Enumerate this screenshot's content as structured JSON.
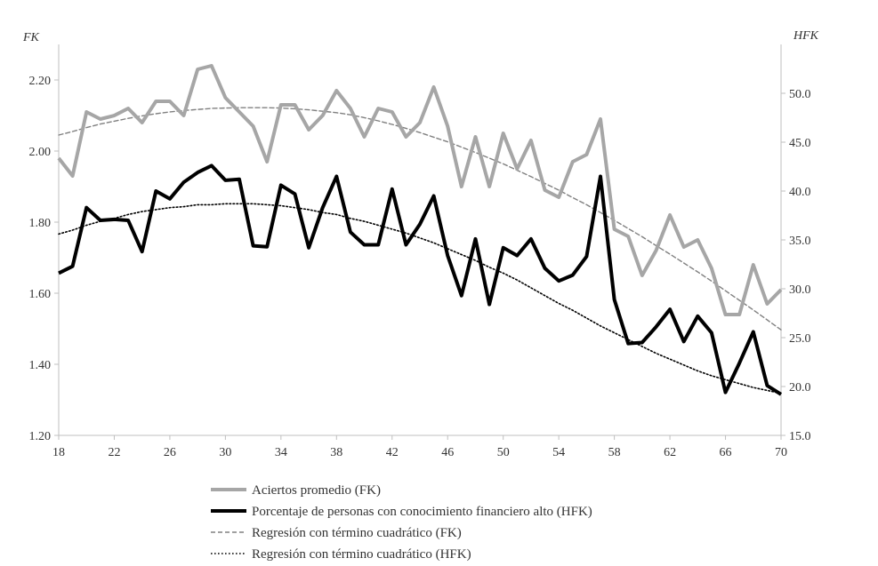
{
  "chart_data": {
    "type": "line",
    "x": [
      18,
      19,
      20,
      21,
      22,
      23,
      24,
      25,
      26,
      27,
      28,
      29,
      30,
      31,
      32,
      33,
      34,
      35,
      36,
      37,
      38,
      39,
      40,
      41,
      42,
      43,
      44,
      45,
      46,
      47,
      48,
      49,
      50,
      51,
      52,
      53,
      54,
      55,
      56,
      57,
      58,
      59,
      60,
      61,
      62,
      63,
      64,
      65,
      66,
      67,
      68,
      69,
      70
    ],
    "x_ticks": [
      "18",
      "22",
      "26",
      "30",
      "34",
      "38",
      "42",
      "46",
      "50",
      "54",
      "58",
      "62",
      "66",
      "70"
    ],
    "xlim": [
      18,
      70
    ],
    "y_left": {
      "label": "FK",
      "ylim": [
        1.2,
        2.3
      ],
      "ticks": [
        "1.20",
        "1.40",
        "1.60",
        "1.80",
        "2.00",
        "2.20"
      ]
    },
    "y_right": {
      "label": "HFK",
      "ylim": [
        15.0,
        55.0
      ],
      "ticks": [
        "15.0",
        "20.0",
        "25.0",
        "30.0",
        "35.0",
        "40.0",
        "45.0",
        "50.0"
      ]
    },
    "series": [
      {
        "name": "Aciertos promedio (FK)",
        "axis": "left",
        "style": "solid",
        "color": "#a6a6a6",
        "values": [
          1.98,
          1.93,
          2.11,
          2.09,
          2.1,
          2.12,
          2.08,
          2.14,
          2.14,
          2.1,
          2.23,
          2.24,
          2.15,
          2.11,
          2.07,
          1.97,
          2.13,
          2.13,
          2.06,
          2.1,
          2.17,
          2.12,
          2.04,
          2.12,
          2.11,
          2.04,
          2.08,
          2.18,
          2.07,
          1.9,
          2.04,
          1.9,
          2.05,
          1.95,
          2.03,
          1.89,
          1.87,
          1.97,
          1.99,
          2.09,
          1.78,
          1.76,
          1.65,
          1.72,
          1.82,
          1.73,
          1.75,
          1.67,
          1.54,
          1.54,
          1.68,
          1.57,
          1.61
        ]
      },
      {
        "name": "Porcentaje de personas con conocimiento financiero alto (HFK)",
        "axis": "right",
        "style": "solid",
        "color": "#000000",
        "values": [
          31.6,
          32.3,
          38.3,
          37.0,
          37.1,
          37.0,
          33.8,
          40.0,
          39.2,
          40.9,
          41.9,
          42.6,
          41.1,
          41.2,
          34.4,
          34.3,
          40.6,
          39.7,
          34.2,
          38.3,
          41.5,
          35.8,
          34.5,
          34.5,
          40.2,
          34.5,
          36.6,
          39.5,
          33.4,
          29.3,
          35.1,
          28.4,
          34.2,
          33.4,
          35.1,
          32.1,
          30.8,
          31.4,
          33.3,
          41.5,
          28.9,
          24.4,
          24.5,
          26.1,
          27.9,
          24.6,
          27.2,
          25.5,
          19.4,
          22.4,
          25.6,
          20.1,
          19.2
        ]
      },
      {
        "name": "Regresión con término cuadrático (FK)",
        "axis": "left",
        "style": "dashed",
        "color": "#808080",
        "values": [
          2.045,
          2.055,
          2.066,
          2.076,
          2.084,
          2.092,
          2.099,
          2.105,
          2.11,
          2.114,
          2.117,
          2.12,
          2.121,
          2.122,
          2.122,
          2.122,
          2.121,
          2.119,
          2.116,
          2.112,
          2.108,
          2.102,
          2.094,
          2.085,
          2.075,
          2.064,
          2.052,
          2.039,
          2.026,
          2.011,
          1.996,
          1.98,
          1.964,
          1.946,
          1.928,
          1.909,
          1.89,
          1.869,
          1.849,
          1.827,
          1.805,
          1.782,
          1.759,
          1.734,
          1.71,
          1.685,
          1.66,
          1.634,
          1.607,
          1.58,
          1.553,
          1.525,
          1.497
        ]
      },
      {
        "name": "Regresión con término cuadrático (HFK)",
        "axis": "right",
        "style": "dotted",
        "color": "#000000",
        "values": [
          35.6,
          36.0,
          36.5,
          36.9,
          37.2,
          37.6,
          37.9,
          38.1,
          38.3,
          38.4,
          38.6,
          38.6,
          38.7,
          38.7,
          38.7,
          38.6,
          38.5,
          38.3,
          38.1,
          37.8,
          37.6,
          37.2,
          36.9,
          36.5,
          36.1,
          35.7,
          35.2,
          34.7,
          34.1,
          33.5,
          32.9,
          32.2,
          31.6,
          30.9,
          30.1,
          29.3,
          28.5,
          27.8,
          27.0,
          26.2,
          25.5,
          24.8,
          24.1,
          23.4,
          22.8,
          22.2,
          21.6,
          21.1,
          20.7,
          20.3,
          19.9,
          19.6,
          19.3
        ]
      }
    ]
  }
}
